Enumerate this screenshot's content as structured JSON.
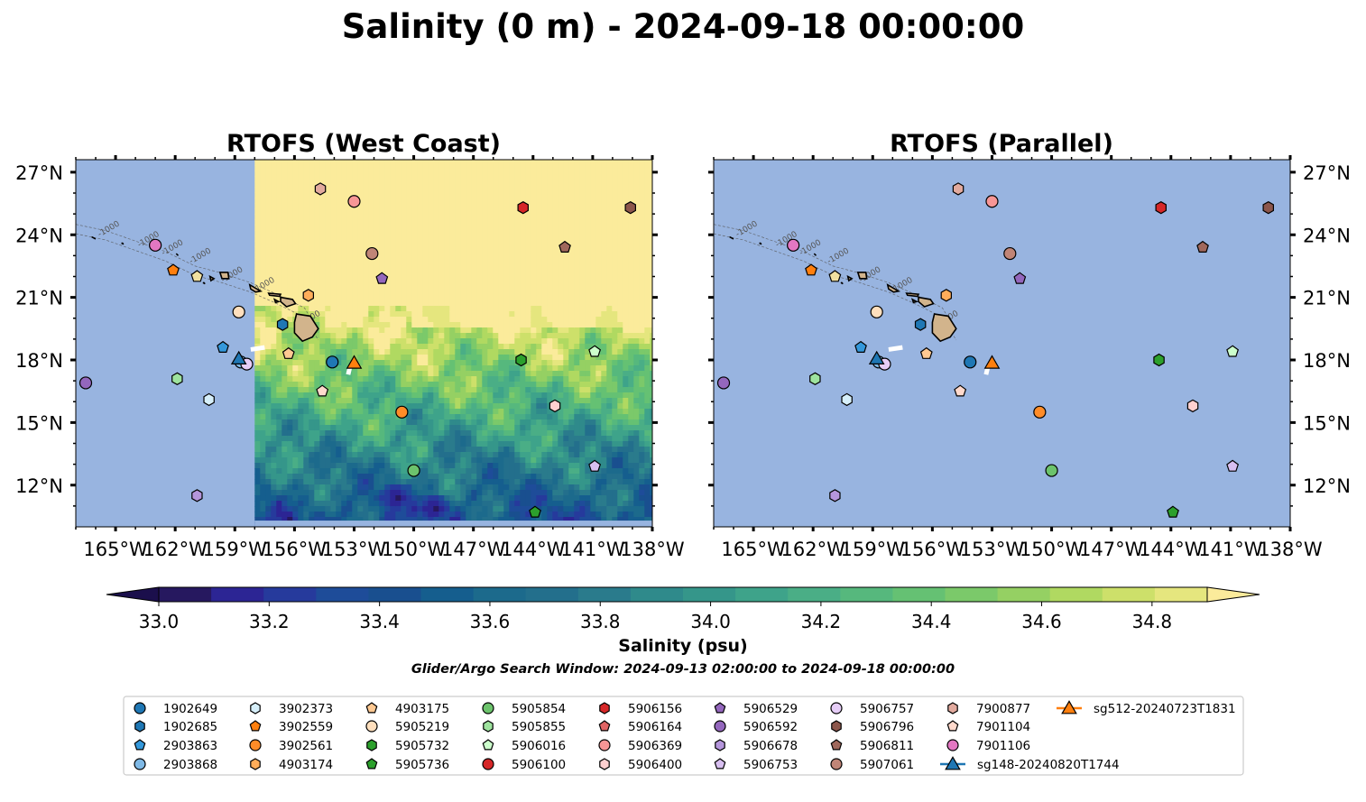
{
  "title": "Salinity (0 m) - 2024-09-18 00:00:00",
  "panels": [
    {
      "title": "RTOFS (West Coast)",
      "field": "salinity-contour"
    },
    {
      "title": "RTOFS (Parallel)",
      "field": "no-data"
    }
  ],
  "colorbar": {
    "label": "Salinity (psu)",
    "ticks": [
      "33.0",
      "33.2",
      "33.4",
      "33.6",
      "33.8",
      "34.0",
      "34.2",
      "34.4",
      "34.6",
      "34.8"
    ],
    "levels": [
      32.9,
      33.0,
      33.1,
      33.2,
      33.3,
      33.4,
      33.5,
      33.6,
      33.7,
      33.8,
      33.9,
      34.0,
      34.1,
      34.2,
      34.3,
      34.4,
      34.5,
      34.6,
      34.7,
      34.8,
      34.9
    ],
    "colors": [
      "#26185f",
      "#2c2594",
      "#263a9c",
      "#1e4c99",
      "#194f8f",
      "#155e8e",
      "#1c6a8c",
      "#236f8c",
      "#2a7b8c",
      "#2f8a8b",
      "#35968a",
      "#3ea38a",
      "#4aae86",
      "#56b87d",
      "#65c173",
      "#7bc96a",
      "#95d063",
      "#b0d961",
      "#cde06a",
      "#e5e67e"
    ],
    "extend_low": "#1b0f4c",
    "extend_high": "#fbeb9b"
  },
  "subtitle": "Glider/Argo Search Window: 2024-09-13 02:00:00 to 2024-09-18 00:00:00",
  "map": {
    "lon_ticks": [
      "165°W",
      "162°W",
      "159°W",
      "156°W",
      "153°W",
      "150°W",
      "147°W",
      "144°W",
      "141°W",
      "138°W"
    ],
    "lat_ticks": [
      "27°N",
      "24°N",
      "21°N",
      "18°N",
      "15°N",
      "12°N"
    ],
    "land_color": "#d2b48c",
    "nodata_color": "#98b4e0"
  },
  "contour_labels": [
    "-1000",
    "-1000",
    "-1000",
    "-1000",
    "-1000",
    "-1000",
    "-1000"
  ],
  "chart_data": {
    "type": "map-scatter",
    "x_range": [
      -167,
      -138
    ],
    "y_range": [
      10,
      27.6
    ],
    "salinity_field": {
      "west_coast_boundary_lon": -158,
      "description_levels": "North of ~20N mostly >34.9 psu, decreasing southward to ~33.2-33.5 near 11N"
    },
    "floats": [
      {
        "id": "1902649",
        "marker": "circle",
        "color": "#1f77b4",
        "lon": -154.1,
        "lat": 17.9
      },
      {
        "id": "1902685",
        "marker": "hexagon",
        "color": "#1f77b4",
        "lon": -156.6,
        "lat": 19.7
      },
      {
        "id": "2903863",
        "marker": "pentagon",
        "color": "#3498db",
        "lon": -159.6,
        "lat": 18.6
      },
      {
        "id": "2903868",
        "marker": "circle",
        "color": "#7fb9e6",
        "lon": -158.7,
        "lat": 17.9
      },
      {
        "id": "3902373",
        "marker": "hexagon",
        "color": "#d6effa",
        "lon": -160.3,
        "lat": 16.1
      },
      {
        "id": "3902559",
        "marker": "pentagon",
        "color": "#ff7f0e",
        "lon": -162.1,
        "lat": 22.3
      },
      {
        "id": "3902561",
        "marker": "circle",
        "color": "#ff8c28",
        "lon": -150.6,
        "lat": 15.5
      },
      {
        "id": "4903174",
        "marker": "hexagon",
        "color": "#ffad5a",
        "lon": -155.3,
        "lat": 21.1
      },
      {
        "id": "4903175",
        "marker": "pentagon",
        "color": "#ffc992",
        "lon": -156.3,
        "lat": 18.3
      },
      {
        "id": "5905219",
        "marker": "circle",
        "color": "#ffdfbd",
        "lon": -158.8,
        "lat": 20.3
      },
      {
        "id": "5905732",
        "marker": "hexagon",
        "color": "#2ca02c",
        "lon": -144.6,
        "lat": 18.0
      },
      {
        "id": "5905736",
        "marker": "pentagon",
        "color": "#2ca02c",
        "lon": -143.9,
        "lat": 10.7
      },
      {
        "id": "5905854",
        "marker": "circle",
        "color": "#6cc36c",
        "lon": -150.0,
        "lat": 12.7
      },
      {
        "id": "5905855",
        "marker": "hexagon",
        "color": "#9ee39e",
        "lon": -161.9,
        "lat": 17.1
      },
      {
        "id": "5906016",
        "marker": "pentagon",
        "color": "#ccffcc",
        "lon": -140.9,
        "lat": 18.4
      },
      {
        "id": "5906100",
        "marker": "circle",
        "color": "#d62728",
        "lon": null,
        "lat": null
      },
      {
        "id": "5906156",
        "marker": "hexagon",
        "color": "#d62728",
        "lon": -144.5,
        "lat": 25.3
      },
      {
        "id": "5906164",
        "marker": "pentagon",
        "color": "#e06464",
        "lon": null,
        "lat": null
      },
      {
        "id": "5906369",
        "marker": "circle",
        "color": "#f79696",
        "lon": -153.0,
        "lat": 25.6
      },
      {
        "id": "5906400",
        "marker": "hexagon",
        "color": "#ffd0d0",
        "lon": -142.9,
        "lat": 15.8
      },
      {
        "id": "5906529",
        "marker": "pentagon",
        "color": "#9467bd",
        "lon": -151.6,
        "lat": 21.9
      },
      {
        "id": "5906592",
        "marker": "circle",
        "color": "#9467bd",
        "lon": -166.5,
        "lat": 16.9
      },
      {
        "id": "5906678",
        "marker": "hexagon",
        "color": "#b596dc",
        "lon": null,
        "lat": null
      },
      {
        "id": "5906753",
        "marker": "pentagon",
        "color": "#d8bff0",
        "lon": -140.9,
        "lat": 12.9
      },
      {
        "id": "5906757",
        "marker": "circle",
        "color": "#e6cdf7",
        "lon": -158.4,
        "lat": 17.8
      },
      {
        "id": "5906796",
        "marker": "hexagon",
        "color": "#8c564b",
        "lon": -139.1,
        "lat": 25.3
      },
      {
        "id": "5906811",
        "marker": "pentagon",
        "color": "#a0685c",
        "lon": -142.4,
        "lat": 23.4
      },
      {
        "id": "5907061",
        "marker": "circle",
        "color": "#c08577",
        "lon": -152.1,
        "lat": 23.1
      },
      {
        "id": "7900877",
        "marker": "hexagon",
        "color": "#e2aa9e",
        "lon": -154.7,
        "lat": 26.2
      },
      {
        "id": "7901104",
        "marker": "pentagon",
        "color": "#ffd9cc",
        "lon": -154.6,
        "lat": 16.5
      },
      {
        "id": "7901106",
        "marker": "circle",
        "color": "#e377c2",
        "lon": -163.0,
        "lat": 23.5
      }
    ],
    "extra_points": [
      {
        "marker": "hexagon",
        "color": "#b596dc",
        "lon": -160.9,
        "lat": 11.5
      },
      {
        "marker": "pentagon",
        "color": "#f0e0a0",
        "lon": -160.9,
        "lat": 22.0
      }
    ],
    "gliders": [
      {
        "id": "sg148-20240820T1744",
        "marker": "triangle",
        "color": "#1f77b4",
        "lon": -158.8,
        "lat": 18.1
      },
      {
        "id": "sg512-20240723T1831",
        "marker": "triangle",
        "color": "#ff7f0e",
        "lon": -153.0,
        "lat": 17.9
      }
    ]
  }
}
